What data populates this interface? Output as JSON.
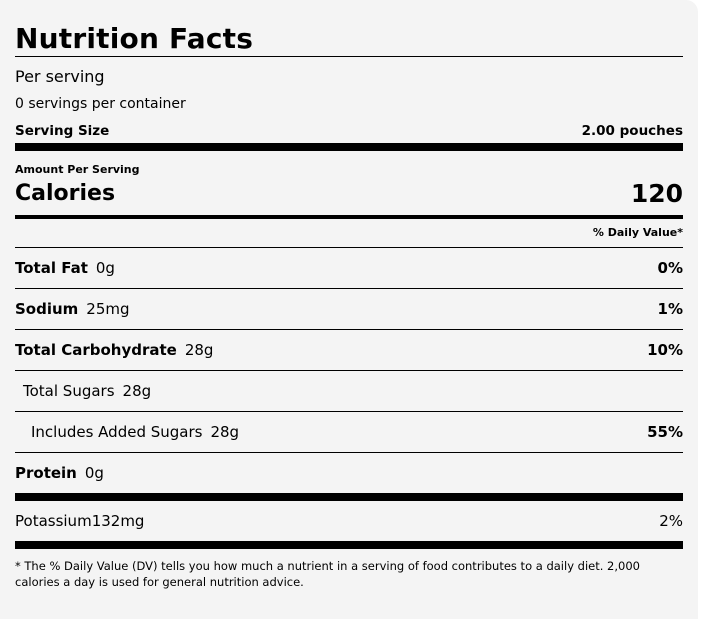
{
  "title": "Nutrition Facts",
  "per_serving": "Per serving",
  "servings_per_container": "0 servings per container",
  "serving_size": {
    "label": "Serving Size",
    "value": "2.00 pouches"
  },
  "amount_per_serving": "Amount Per Serving",
  "calories": {
    "label": "Calories",
    "value": "120"
  },
  "daily_value_header": "% Daily Value*",
  "nutrients": {
    "total_fat": {
      "name": "Total Fat",
      "amount": "0g",
      "dv": "0%"
    },
    "sodium": {
      "name": "Sodium",
      "amount": "25mg",
      "dv": "1%"
    },
    "total_carbohydrate": {
      "name": "Total Carbohydrate",
      "amount": "28g",
      "dv": "10%"
    },
    "total_sugars": {
      "name": "Total Sugars",
      "amount": "28g",
      "dv": ""
    },
    "added_sugars": {
      "name": "Includes Added Sugars",
      "amount": "28g",
      "dv": "55%"
    },
    "protein": {
      "name": "Protein",
      "amount": "0g",
      "dv": ""
    },
    "potassium": {
      "name": "Potassium",
      "amount": "132mg",
      "dv": "2%"
    }
  },
  "footnote": "* The % Daily Value (DV) tells you how much a nutrient in a serving of food contributes to a daily diet. 2,000 calories a day is used for general nutrition advice."
}
